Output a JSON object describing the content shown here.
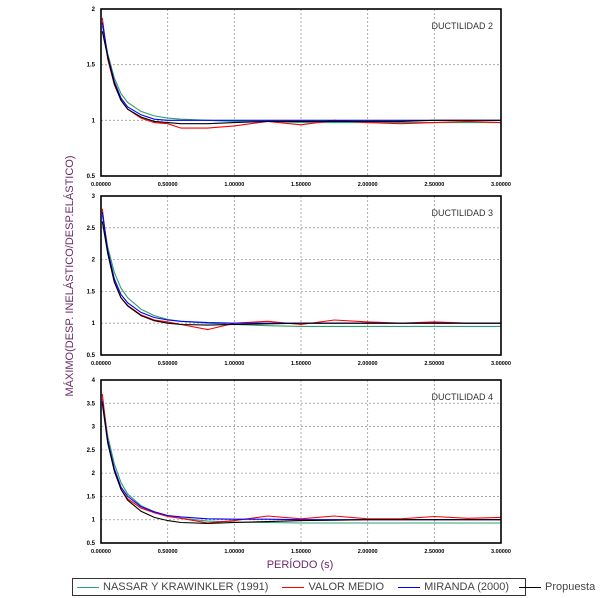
{
  "chart_data": {
    "type": "line",
    "ylabel": "MÁXIMO(DESP. INELÁSTICO/DESP.ELÁSTICO)",
    "xlabel": "PERÍODO (s)",
    "x_tick_labels": [
      "0.00000",
      "0.50000",
      "1.00000",
      "1.50000",
      "2.00000",
      "2.50000",
      "3.00000"
    ],
    "xlim": [
      0,
      3
    ],
    "grid": true,
    "legend_placement": "bottom",
    "legend": [
      {
        "name": "NASSAR Y KRAWINKLER (1991)",
        "color": "#2e9e6e"
      },
      {
        "name": "VALOR MEDIO",
        "color": "#ff0000"
      },
      {
        "name": "MIRANDA (2000)",
        "color": "#0000ff"
      },
      {
        "name": "Propuesta",
        "color": "#000000"
      }
    ],
    "x": [
      0.01,
      0.05,
      0.1,
      0.15,
      0.2,
      0.3,
      0.4,
      0.5,
      0.6,
      0.8,
      1.0,
      1.25,
      1.5,
      1.75,
      2.0,
      2.25,
      2.5,
      2.75,
      3.0
    ],
    "panels": [
      {
        "title": "DUCTILIDAD 2",
        "ylim": [
          0.5,
          2
        ],
        "y_ticks": [
          "0.5",
          "1",
          "1.5",
          "2"
        ],
        "series": [
          {
            "name": "NASSAR Y KRAWINKLER (1991)",
            "values": [
              1.85,
              1.6,
              1.38,
              1.24,
              1.16,
              1.08,
              1.04,
              1.02,
              1.01,
              1.0,
              0.99,
              0.99,
              0.98,
              0.98,
              0.98,
              0.98,
              0.98,
              0.98,
              0.98
            ]
          },
          {
            "name": "VALOR MEDIO",
            "values": [
              1.92,
              1.55,
              1.32,
              1.18,
              1.1,
              1.02,
              0.98,
              0.97,
              0.93,
              0.93,
              0.95,
              0.99,
              0.96,
              1.0,
              0.98,
              0.97,
              0.98,
              0.99,
              0.98
            ]
          },
          {
            "name": "MIRANDA (2000)",
            "values": [
              1.88,
              1.58,
              1.35,
              1.2,
              1.12,
              1.05,
              1.01,
              1.0,
              1.0,
              1.0,
              1.0,
              1.0,
              1.0,
              1.0,
              1.0,
              1.0,
              1.0,
              1.0,
              1.0
            ]
          },
          {
            "name": "Propuesta",
            "values": [
              1.8,
              1.57,
              1.33,
              1.18,
              1.1,
              1.03,
              0.99,
              0.98,
              0.97,
              0.97,
              0.98,
              0.99,
              0.99,
              0.99,
              0.99,
              0.99,
              1.0,
              1.0,
              1.0
            ]
          }
        ]
      },
      {
        "title": "DUCTILIDAD 3",
        "ylim": [
          0.5,
          3
        ],
        "y_ticks": [
          "0.5",
          "1",
          "1.5",
          "2",
          "2.5",
          "3"
        ],
        "series": [
          {
            "name": "NASSAR Y KRAWINKLER (1991)",
            "values": [
              2.7,
              2.2,
              1.8,
              1.55,
              1.4,
              1.22,
              1.12,
              1.06,
              1.03,
              1.0,
              0.98,
              0.96,
              0.95,
              0.95,
              0.95,
              0.95,
              0.95,
              0.95,
              0.95
            ]
          },
          {
            "name": "VALOR MEDIO",
            "values": [
              2.8,
              2.1,
              1.65,
              1.4,
              1.28,
              1.13,
              1.05,
              1.02,
              0.98,
              0.9,
              1.0,
              1.03,
              0.98,
              1.05,
              1.02,
              1.0,
              1.02,
              1.0,
              1.0
            ]
          },
          {
            "name": "MIRANDA (2000)",
            "values": [
              2.75,
              2.15,
              1.7,
              1.45,
              1.32,
              1.17,
              1.09,
              1.05,
              1.03,
              1.01,
              1.0,
              1.0,
              1.0,
              1.0,
              1.0,
              1.0,
              1.0,
              1.0,
              1.0
            ]
          },
          {
            "name": "Propuesta",
            "values": [
              2.6,
              2.1,
              1.65,
              1.4,
              1.27,
              1.12,
              1.04,
              1.0,
              0.98,
              0.97,
              0.98,
              0.99,
              1.0,
              1.0,
              1.0,
              1.0,
              1.0,
              1.0,
              1.0
            ]
          }
        ]
      },
      {
        "title": "DUCTILIDAD 4",
        "ylim": [
          0.5,
          4
        ],
        "y_ticks": [
          "0.5",
          "1",
          "1.5",
          "2",
          "2.5",
          "3",
          "3.5",
          "4"
        ],
        "series": [
          {
            "name": "NASSAR Y KRAWINKLER (1991)",
            "values": [
              3.6,
              2.8,
              2.2,
              1.8,
              1.55,
              1.3,
              1.17,
              1.08,
              1.03,
              0.97,
              0.95,
              0.94,
              0.93,
              0.93,
              0.93,
              0.93,
              0.93,
              0.93,
              0.93
            ]
          },
          {
            "name": "VALOR MEDIO",
            "values": [
              3.7,
              2.7,
              2.05,
              1.65,
              1.45,
              1.25,
              1.15,
              1.07,
              1.03,
              0.93,
              0.98,
              1.08,
              1.02,
              1.08,
              1.02,
              1.02,
              1.07,
              1.03,
              1.05
            ]
          },
          {
            "name": "MIRANDA (2000)",
            "values": [
              3.55,
              2.7,
              2.1,
              1.7,
              1.5,
              1.28,
              1.17,
              1.09,
              1.06,
              1.02,
              1.01,
              1.01,
              1.0,
              1.0,
              1.0,
              1.0,
              1.0,
              1.0,
              1.0
            ]
          },
          {
            "name": "Propuesta",
            "values": [
              3.5,
              2.65,
              2.05,
              1.65,
              1.42,
              1.18,
              1.05,
              0.98,
              0.94,
              0.92,
              0.94,
              0.96,
              0.98,
              0.99,
              1.0,
              1.0,
              1.0,
              1.0,
              1.0
            ]
          }
        ]
      }
    ]
  }
}
